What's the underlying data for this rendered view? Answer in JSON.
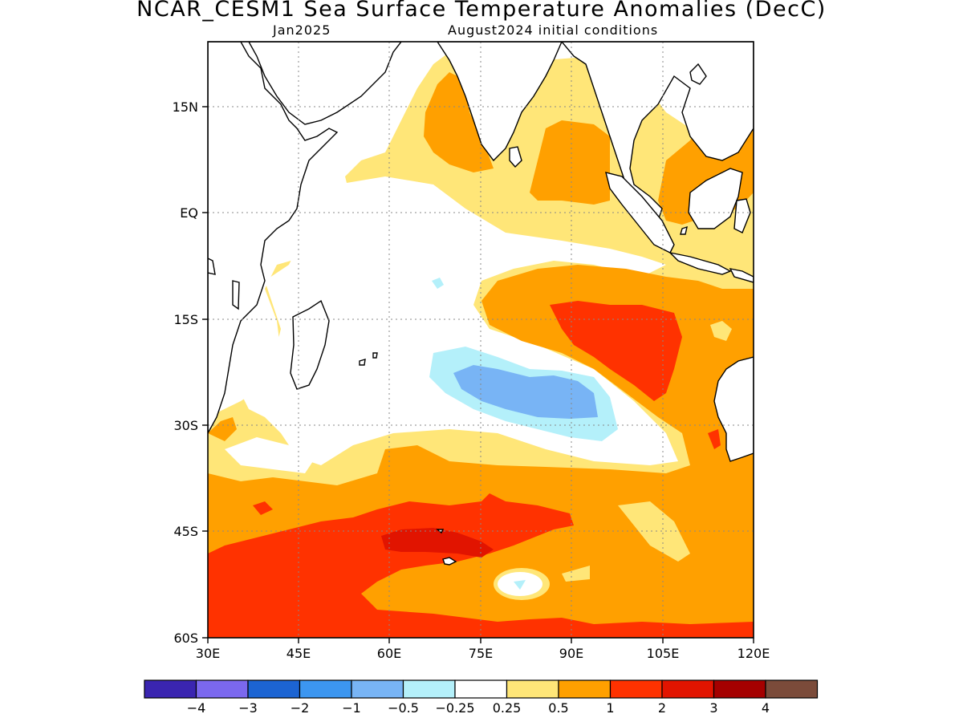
{
  "title": "NCAR_CESM1 Sea Surface Temperature Anomalies (DecC)",
  "subtitle_left": "Jan2025",
  "subtitle_right": "August2024 initial conditions",
  "map": {
    "lon_range": [
      30,
      120
    ],
    "lat_range": [
      -60,
      24
    ],
    "lon_ticks": [
      "30E",
      "45E",
      "60E",
      "75E",
      "90E",
      "105E",
      "120E"
    ],
    "lat_ticks": [
      "15N",
      "EQ",
      "15S",
      "30S",
      "45S",
      "60S"
    ],
    "grid": "dotted"
  },
  "colorbar": {
    "colors": [
      "#3a25b0",
      "#7b68ee",
      "#1c64d2",
      "#3c96f0",
      "#78b4f5",
      "#b4f0fa",
      "#ffffff",
      "#ffe678",
      "#ffa000",
      "#ff3200",
      "#e11400",
      "#a50000",
      "#7b4b3a"
    ],
    "labels": [
      "−4",
      "−3",
      "−2",
      "−1",
      "−0.5",
      "−0.25",
      "0.25",
      "0.5",
      "1",
      "2",
      "3",
      "4"
    ]
  }
}
